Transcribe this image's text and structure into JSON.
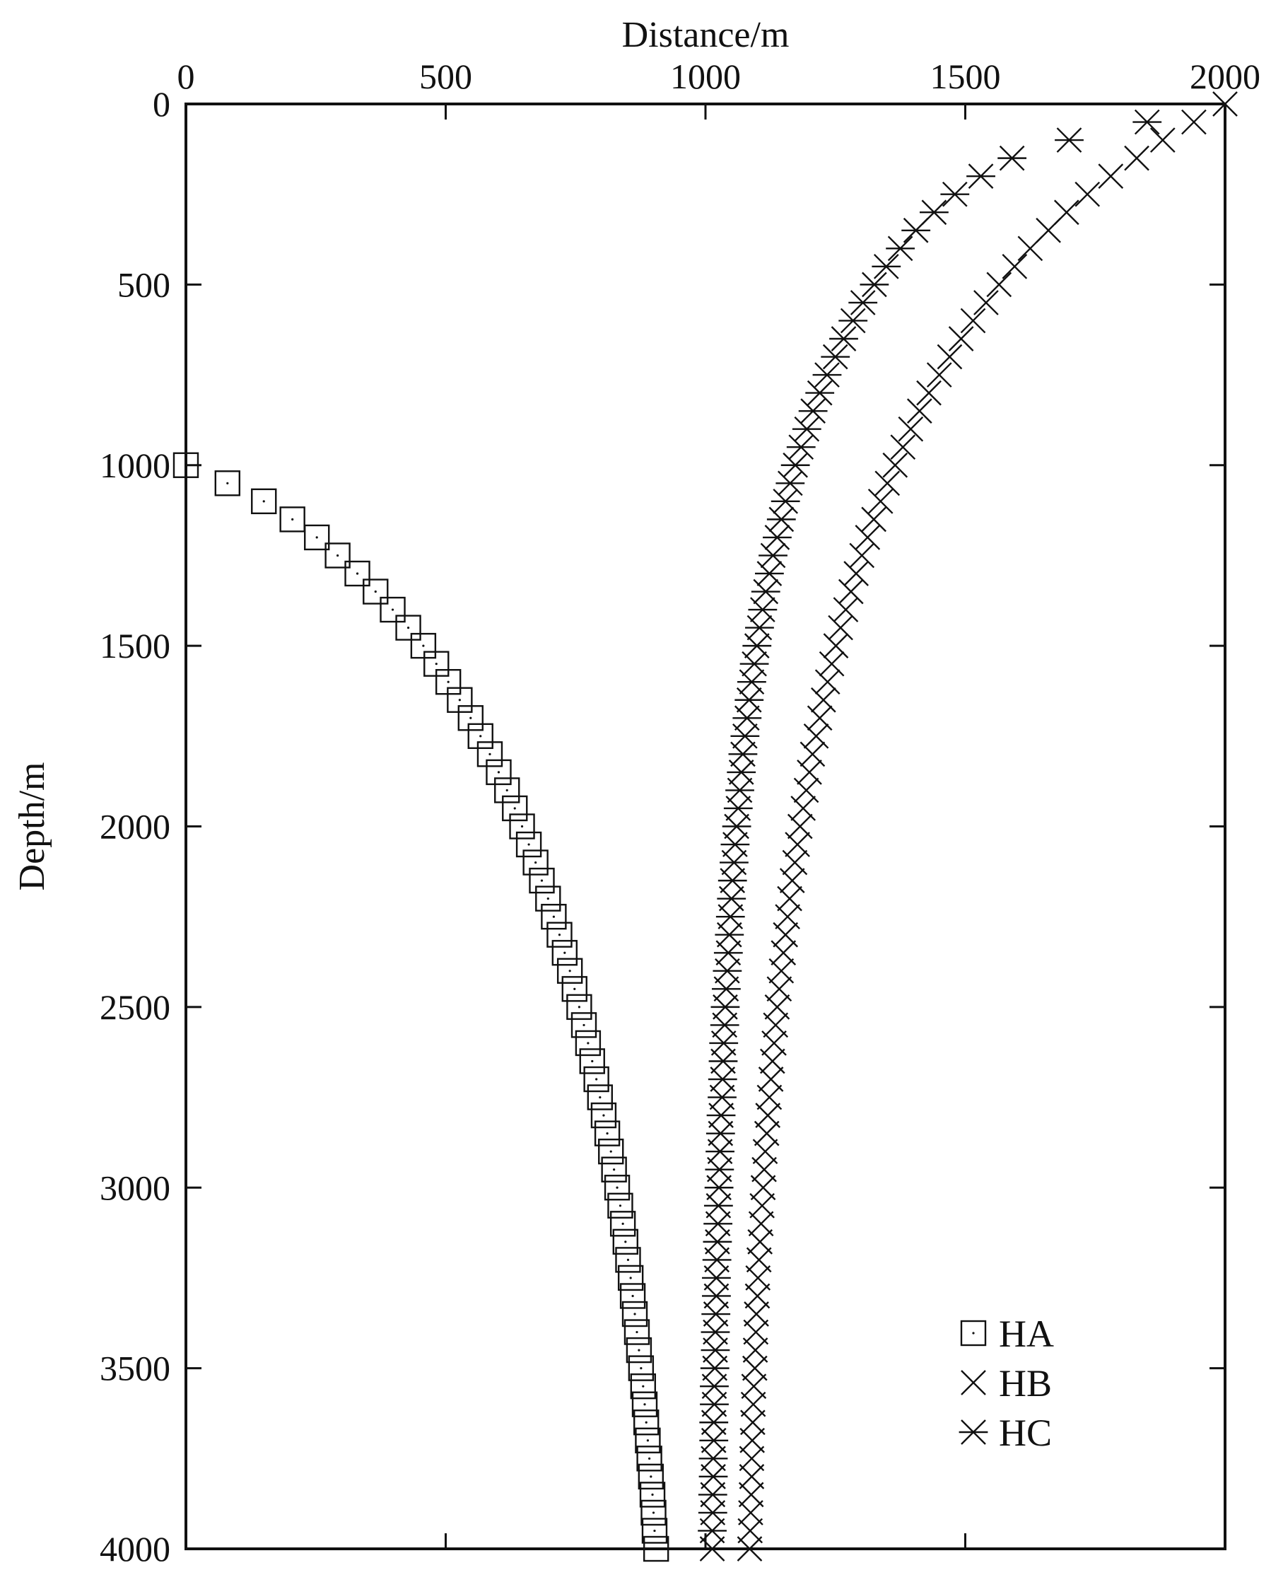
{
  "chart_data": {
    "type": "scatter",
    "xlabel": "Distance/m",
    "ylabel": "Depth/m",
    "xlim": [
      0,
      2000
    ],
    "ylim": [
      0,
      4000
    ],
    "y_inverted": true,
    "x_axis_position": "top",
    "grid": false,
    "legend_position": "bottom-right",
    "x_ticks": [
      "0",
      "500",
      "1000",
      "1500",
      "2000"
    ],
    "y_ticks": [
      "0",
      "500",
      "1000",
      "1500",
      "2000",
      "2500",
      "3000",
      "3500",
      "4000"
    ],
    "series": [
      {
        "name": "HA",
        "marker": "square",
        "depth_step": 50,
        "points": [
          [
            0,
            1000
          ],
          [
            80,
            1050
          ],
          [
            150,
            1100
          ],
          [
            205,
            1150
          ],
          [
            252,
            1200
          ],
          [
            292,
            1250
          ],
          [
            330,
            1300
          ],
          [
            365,
            1350
          ],
          [
            398,
            1400
          ],
          [
            428,
            1450
          ],
          [
            457,
            1500
          ],
          [
            482,
            1550
          ],
          [
            505,
            1600
          ],
          [
            527,
            1650
          ],
          [
            548,
            1700
          ],
          [
            567,
            1750
          ],
          [
            585,
            1800
          ],
          [
            602,
            1850
          ],
          [
            618,
            1900
          ],
          [
            633,
            1950
          ],
          [
            647,
            2000
          ],
          [
            660,
            2050
          ],
          [
            673,
            2100
          ],
          [
            685,
            2150
          ],
          [
            697,
            2200
          ],
          [
            708,
            2250
          ],
          [
            719,
            2300
          ],
          [
            729,
            2350
          ],
          [
            739,
            2400
          ],
          [
            748,
            2450
          ],
          [
            757,
            2500
          ],
          [
            766,
            2550
          ],
          [
            774,
            2600
          ],
          [
            782,
            2650
          ],
          [
            790,
            2700
          ],
          [
            797,
            2750
          ],
          [
            804,
            2800
          ],
          [
            811,
            2850
          ],
          [
            818,
            2900
          ],
          [
            824,
            2950
          ],
          [
            830,
            3000
          ],
          [
            836,
            3050
          ],
          [
            841,
            3100
          ],
          [
            846,
            3150
          ],
          [
            851,
            3200
          ],
          [
            856,
            3250
          ],
          [
            860,
            3300
          ],
          [
            864,
            3350
          ],
          [
            868,
            3400
          ],
          [
            872,
            3450
          ],
          [
            876,
            3500
          ],
          [
            880,
            3550
          ],
          [
            883,
            3600
          ],
          [
            886,
            3650
          ],
          [
            889,
            3700
          ],
          [
            892,
            3750
          ],
          [
            895,
            3800
          ],
          [
            898,
            3850
          ],
          [
            900,
            3900
          ],
          [
            902,
            3950
          ],
          [
            905,
            4000
          ]
        ]
      },
      {
        "name": "HB",
        "marker": "x",
        "depth_step": 50,
        "points": [
          [
            2000,
            0
          ],
          [
            1940,
            50
          ],
          [
            1880,
            100
          ],
          [
            1830,
            150
          ],
          [
            1780,
            200
          ],
          [
            1735,
            250
          ],
          [
            1695,
            300
          ],
          [
            1660,
            350
          ],
          [
            1625,
            400
          ],
          [
            1595,
            450
          ],
          [
            1565,
            500
          ],
          [
            1540,
            550
          ],
          [
            1515,
            600
          ],
          [
            1492,
            650
          ],
          [
            1470,
            700
          ],
          [
            1450,
            750
          ],
          [
            1430,
            800
          ],
          [
            1412,
            850
          ],
          [
            1395,
            900
          ],
          [
            1380,
            950
          ],
          [
            1365,
            1000
          ],
          [
            1350,
            1050
          ],
          [
            1337,
            1100
          ],
          [
            1324,
            1150
          ],
          [
            1312,
            1200
          ],
          [
            1301,
            1250
          ],
          [
            1290,
            1300
          ],
          [
            1280,
            1350
          ],
          [
            1270,
            1400
          ],
          [
            1260,
            1450
          ],
          [
            1251,
            1500
          ],
          [
            1243,
            1550
          ],
          [
            1235,
            1600
          ],
          [
            1227,
            1650
          ],
          [
            1220,
            1700
          ],
          [
            1213,
            1750
          ],
          [
            1206,
            1800
          ],
          [
            1200,
            1850
          ],
          [
            1194,
            1900
          ],
          [
            1188,
            1950
          ],
          [
            1182,
            2000
          ],
          [
            1177,
            2050
          ],
          [
            1172,
            2100
          ],
          [
            1167,
            2150
          ],
          [
            1162,
            2200
          ],
          [
            1158,
            2250
          ],
          [
            1154,
            2300
          ],
          [
            1150,
            2350
          ],
          [
            1146,
            2400
          ],
          [
            1142,
            2450
          ],
          [
            1138,
            2500
          ],
          [
            1135,
            2550
          ],
          [
            1132,
            2600
          ],
          [
            1129,
            2650
          ],
          [
            1126,
            2700
          ],
          [
            1123,
            2750
          ],
          [
            1120,
            2800
          ],
          [
            1118,
            2850
          ],
          [
            1115,
            2900
          ],
          [
            1113,
            2950
          ],
          [
            1111,
            3000
          ],
          [
            1109,
            3050
          ],
          [
            1107,
            3100
          ],
          [
            1105,
            3150
          ],
          [
            1103,
            3200
          ],
          [
            1101,
            3250
          ],
          [
            1100,
            3300
          ],
          [
            1098,
            3350
          ],
          [
            1097,
            3400
          ],
          [
            1096,
            3450
          ],
          [
            1095,
            3500
          ],
          [
            1093,
            3550
          ],
          [
            1092,
            3600
          ],
          [
            1091,
            3650
          ],
          [
            1090,
            3700
          ],
          [
            1089,
            3750
          ],
          [
            1089,
            3800
          ],
          [
            1088,
            3850
          ],
          [
            1087,
            3900
          ],
          [
            1086,
            3950
          ],
          [
            1085,
            4000
          ]
        ]
      },
      {
        "name": "HC",
        "marker": "asterisk",
        "depth_step": 50,
        "points": [
          [
            1850,
            50
          ],
          [
            1700,
            100
          ],
          [
            1590,
            150
          ],
          [
            1530,
            200
          ],
          [
            1480,
            250
          ],
          [
            1440,
            300
          ],
          [
            1405,
            350
          ],
          [
            1375,
            400
          ],
          [
            1348,
            450
          ],
          [
            1325,
            500
          ],
          [
            1303,
            550
          ],
          [
            1284,
            600
          ],
          [
            1266,
            650
          ],
          [
            1250,
            700
          ],
          [
            1234,
            750
          ],
          [
            1220,
            800
          ],
          [
            1207,
            850
          ],
          [
            1195,
            900
          ],
          [
            1184,
            950
          ],
          [
            1173,
            1000
          ],
          [
            1163,
            1050
          ],
          [
            1154,
            1100
          ],
          [
            1146,
            1150
          ],
          [
            1138,
            1200
          ],
          [
            1130,
            1250
          ],
          [
            1123,
            1300
          ],
          [
            1116,
            1350
          ],
          [
            1110,
            1400
          ],
          [
            1104,
            1450
          ],
          [
            1099,
            1500
          ],
          [
            1094,
            1550
          ],
          [
            1089,
            1600
          ],
          [
            1084,
            1650
          ],
          [
            1080,
            1700
          ],
          [
            1076,
            1750
          ],
          [
            1072,
            1800
          ],
          [
            1069,
            1850
          ],
          [
            1066,
            1900
          ],
          [
            1063,
            1950
          ],
          [
            1060,
            2000
          ],
          [
            1057,
            2050
          ],
          [
            1055,
            2100
          ],
          [
            1052,
            2150
          ],
          [
            1050,
            2200
          ],
          [
            1048,
            2250
          ],
          [
            1046,
            2300
          ],
          [
            1044,
            2350
          ],
          [
            1042,
            2400
          ],
          [
            1040,
            2450
          ],
          [
            1038,
            2500
          ],
          [
            1037,
            2550
          ],
          [
            1035,
            2600
          ],
          [
            1034,
            2650
          ],
          [
            1033,
            2700
          ],
          [
            1032,
            2750
          ],
          [
            1030,
            2800
          ],
          [
            1029,
            2850
          ],
          [
            1028,
            2900
          ],
          [
            1027,
            2950
          ],
          [
            1026,
            3000
          ],
          [
            1025,
            3050
          ],
          [
            1024,
            3100
          ],
          [
            1023,
            3150
          ],
          [
            1022,
            3200
          ],
          [
            1021,
            3250
          ],
          [
            1021,
            3300
          ],
          [
            1020,
            3350
          ],
          [
            1019,
            3400
          ],
          [
            1019,
            3450
          ],
          [
            1018,
            3500
          ],
          [
            1017,
            3550
          ],
          [
            1017,
            3600
          ],
          [
            1016,
            3650
          ],
          [
            1016,
            3700
          ],
          [
            1015,
            3750
          ],
          [
            1015,
            3800
          ],
          [
            1014,
            3850
          ],
          [
            1014,
            3900
          ],
          [
            1013,
            3950
          ],
          [
            1013,
            4000
          ]
        ]
      }
    ]
  }
}
